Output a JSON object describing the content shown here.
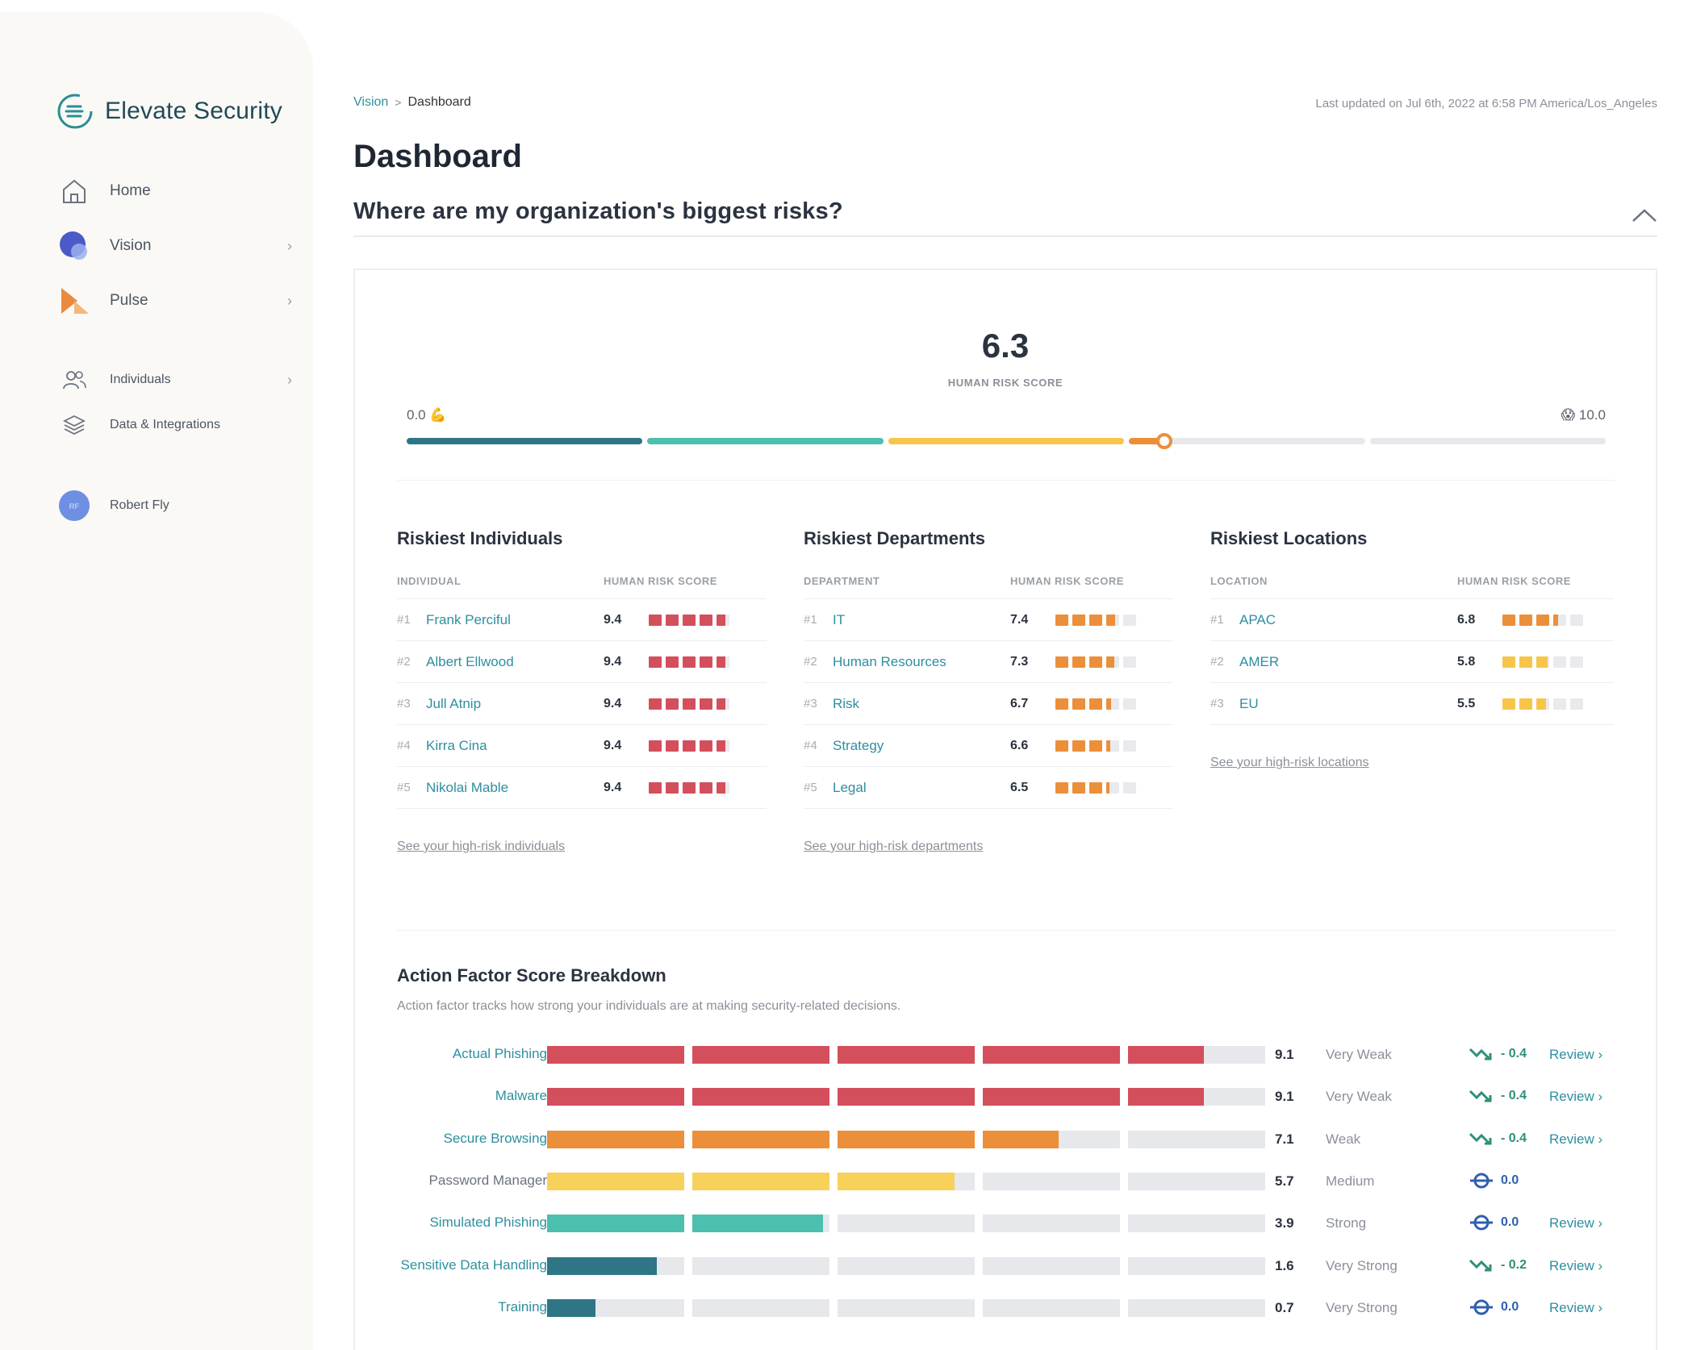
{
  "brand": {
    "name": "Elevate Security",
    "accent": "#2d8fa0"
  },
  "nav": {
    "items": [
      {
        "label": "Home",
        "icon": "home-icon"
      },
      {
        "label": "Vision",
        "icon": "vision-icon",
        "chevron": true
      },
      {
        "label": "Pulse",
        "icon": "pulse-icon",
        "chevron": true
      },
      {
        "label": "Individuals",
        "icon": "individuals-icon",
        "chevron": true
      },
      {
        "label": "Data & Integrations",
        "icon": "layers-icon"
      }
    ],
    "user": {
      "initials": "RF",
      "name": "Robert Fly"
    }
  },
  "breadcrumb": {
    "parent": "Vision",
    "separator": ">",
    "current": "Dashboard"
  },
  "last_updated": "Last updated on Jul 6th, 2022 at 6:58 PM America/Los_Angeles",
  "page_title": "Dashboard",
  "section_title": "Where are my organization's biggest risks?",
  "score": {
    "value": "6.3",
    "label": "HUMAN RISK SCORE",
    "min_label": "0.0 💪",
    "max_label": "😱 10.0",
    "numeric": 6.3,
    "colors": [
      "#2e7686",
      "#4cbfae",
      "#f7c54a",
      "#ec8f3a"
    ]
  },
  "riskiest": {
    "individuals": {
      "title": "Riskiest Individuals",
      "col1": "INDIVIDUAL",
      "col2": "HUMAN RISK SCORE",
      "rows": [
        {
          "rank": "#1",
          "name": "Frank Perciful",
          "score": "9.4"
        },
        {
          "rank": "#2",
          "name": "Albert Ellwood",
          "score": "9.4"
        },
        {
          "rank": "#3",
          "name": "Jull Atnip",
          "score": "9.4"
        },
        {
          "rank": "#4",
          "name": "Kirra Cina",
          "score": "9.4"
        },
        {
          "rank": "#5",
          "name": "Nikolai Mable",
          "score": "9.4"
        }
      ],
      "link": "See your high-risk individuals"
    },
    "departments": {
      "title": "Riskiest Departments",
      "col1": "DEPARTMENT",
      "col2": "HUMAN RISK SCORE",
      "rows": [
        {
          "rank": "#1",
          "name": "IT",
          "score": "7.4"
        },
        {
          "rank": "#2",
          "name": "Human Resources",
          "score": "7.3"
        },
        {
          "rank": "#3",
          "name": "Risk",
          "score": "6.7"
        },
        {
          "rank": "#4",
          "name": "Strategy",
          "score": "6.6"
        },
        {
          "rank": "#5",
          "name": "Legal",
          "score": "6.5"
        }
      ],
      "link": "See your high-risk departments"
    },
    "locations": {
      "title": "Riskiest Locations",
      "col1": "LOCATION",
      "col2": "HUMAN RISK SCORE",
      "rows": [
        {
          "rank": "#1",
          "name": "APAC",
          "score": "6.8"
        },
        {
          "rank": "#2",
          "name": "AMER",
          "score": "5.8"
        },
        {
          "rank": "#3",
          "name": "EU",
          "score": "5.5"
        }
      ],
      "link": "See your high-risk locations"
    }
  },
  "action_factors": {
    "title": "Action Factor Score Breakdown",
    "description": "Action factor tracks how strong your individuals are at making security-related decisions.",
    "review_label": "Review ›",
    "rows": [
      {
        "name": "Actual Phishing",
        "score": "9.1",
        "category": "Very Weak",
        "trend": "- 0.4",
        "trend_dir": "down",
        "review": true,
        "linked": true
      },
      {
        "name": "Malware",
        "score": "9.1",
        "category": "Very Weak",
        "trend": "- 0.4",
        "trend_dir": "down",
        "review": true,
        "linked": true
      },
      {
        "name": "Secure Browsing",
        "score": "7.1",
        "category": "Weak",
        "trend": "- 0.4",
        "trend_dir": "down",
        "review": true,
        "linked": true
      },
      {
        "name": "Password Manager",
        "score": "5.7",
        "category": "Medium",
        "trend": "0.0",
        "trend_dir": "flat",
        "review": false,
        "linked": false
      },
      {
        "name": "Simulated Phishing",
        "score": "3.9",
        "category": "Strong",
        "trend": "0.0",
        "trend_dir": "flat",
        "review": true,
        "linked": true
      },
      {
        "name": "Sensitive Data Handling",
        "score": "1.6",
        "category": "Very Strong",
        "trend": "- 0.2",
        "trend_dir": "down",
        "review": true,
        "linked": true
      },
      {
        "name": "Training",
        "score": "0.7",
        "category": "Very Strong",
        "trend": "0.0",
        "trend_dir": "flat",
        "review": true,
        "linked": true
      }
    ]
  }
}
